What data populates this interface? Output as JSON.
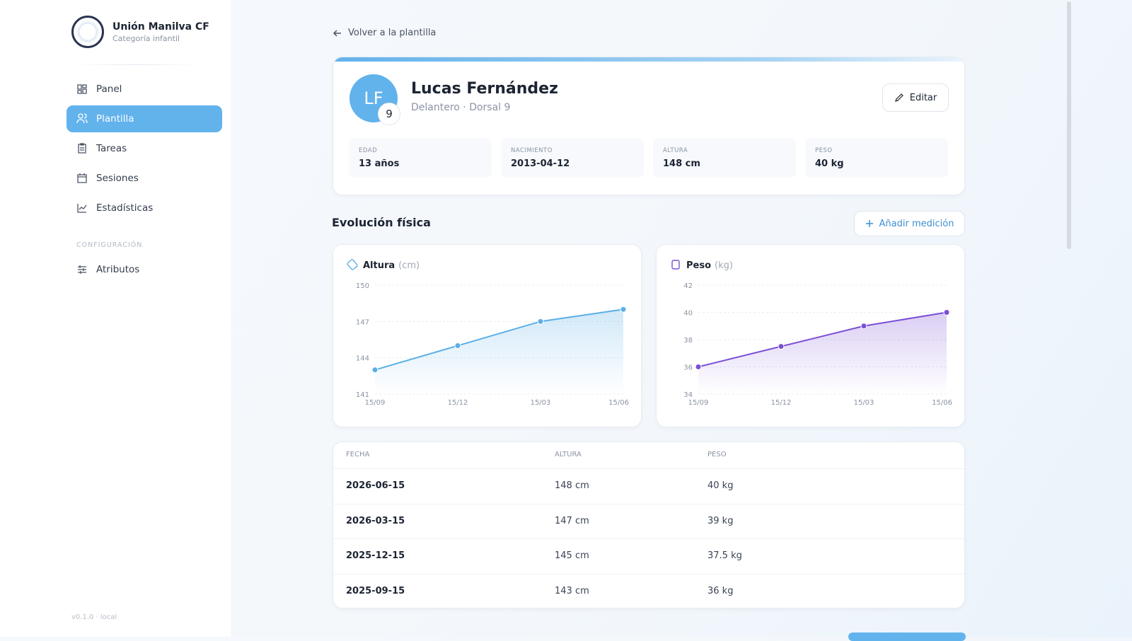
{
  "sidebar": {
    "club": "Unión Manilva CF",
    "category": "Categoría infantil",
    "nav": [
      "Panel",
      "Plantilla",
      "Tareas",
      "Sesiones",
      "Estadísticas"
    ],
    "section": "CONFIGURACIÓN",
    "settings": [
      "Atributos"
    ],
    "active": 1,
    "version": "v0.1.0 · local"
  },
  "back": "Volver a la plantilla",
  "player": {
    "initials": "LF",
    "number": "9",
    "name": "Lucas Fernández",
    "role": "Delantero · Dorsal 9",
    "edit": "Editar",
    "stats": [
      {
        "label": "EDAD",
        "value": "13 años"
      },
      {
        "label": "NACIMIENTO",
        "value": "2013-04-12"
      },
      {
        "label": "ALTURA",
        "value": "148 cm"
      },
      {
        "label": "PESO",
        "value": "40 kg"
      }
    ]
  },
  "section": {
    "title": "Evolución física",
    "add": "Añadir medición"
  },
  "charts": [
    {
      "type": "line",
      "title": "Altura",
      "unit": "(cm)",
      "color": "#5aafe6",
      "categories": [
        "15/09",
        "15/12",
        "15/03",
        "15/06"
      ],
      "values": [
        143,
        145,
        147,
        148
      ],
      "ylim": [
        141,
        150
      ],
      "yticks": [
        141,
        144,
        147,
        150
      ],
      "grid": true
    },
    {
      "type": "line",
      "title": "Peso",
      "unit": "(kg)",
      "color": "#7b4fd6",
      "categories": [
        "15/09",
        "15/12",
        "15/03",
        "15/06"
      ],
      "values": [
        36,
        37.5,
        39,
        40
      ],
      "ylim": [
        34,
        42
      ],
      "yticks": [
        34,
        36,
        38,
        40,
        42
      ],
      "grid": true
    }
  ],
  "table": {
    "header": [
      "FECHA",
      "ALTURA",
      "PESO"
    ],
    "rows": [
      [
        "2026-06-15",
        "148 cm",
        "40 kg"
      ],
      [
        "2026-03-15",
        "147 cm",
        "39 kg"
      ],
      [
        "2025-12-15",
        "145 cm",
        "37.5 kg"
      ],
      [
        "2025-09-15",
        "143 cm",
        "36 kg"
      ]
    ]
  }
}
